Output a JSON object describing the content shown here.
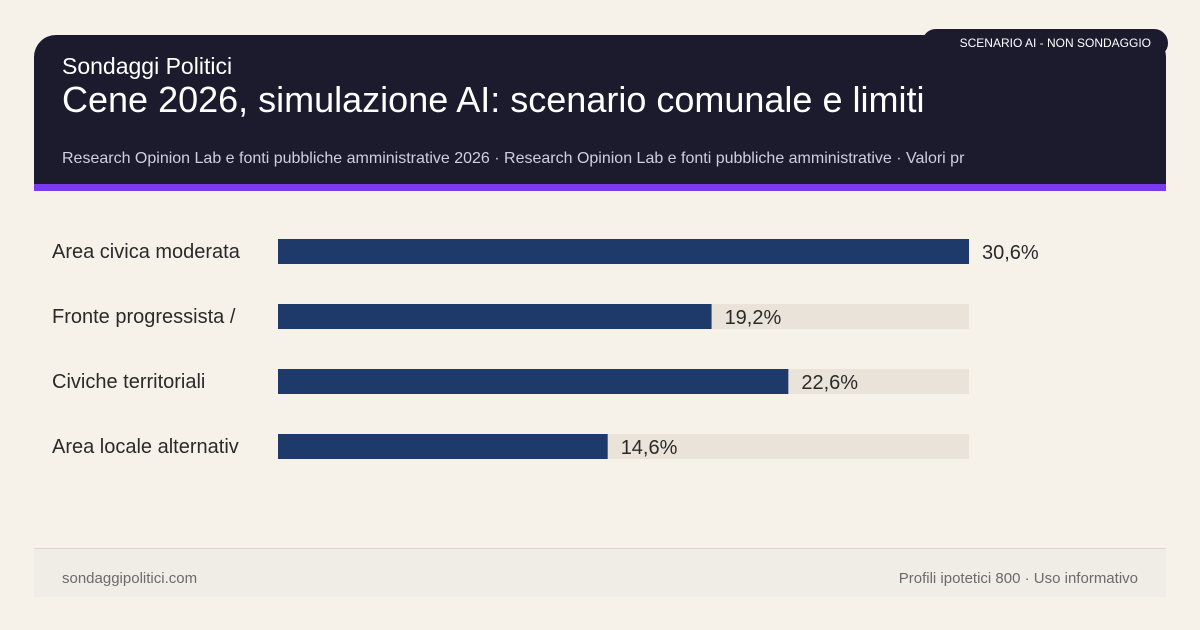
{
  "header": {
    "brand": "Sondaggi Politici",
    "title": "Cene 2026, simulazione AI: scenario comunale e limiti",
    "subtitle": "Research Opinion Lab e fonti pubbliche amministrative 2026 · Research Opinion Lab e fonti pubbliche amministrative · Valori pr",
    "badge": "SCENARIO AI - NON SONDAGGIO"
  },
  "colors": {
    "header_bg": "#1c1b2e",
    "accent": "#7c3aed",
    "bar": "#1e3a6b",
    "track": "#e9e3da",
    "page_bg": "#f6f2ea"
  },
  "chart_data": {
    "type": "bar",
    "orientation": "horizontal",
    "categories": [
      "Area civica moderata",
      "Fronte progressista /",
      "Civiche territoriali",
      "Area locale alternativ"
    ],
    "values": [
      30.6,
      19.2,
      22.6,
      14.6
    ],
    "value_labels": [
      "30,6%",
      "19,2%",
      "22,6%",
      "14,6%"
    ],
    "xlim": [
      0,
      30.6
    ],
    "grid": false,
    "legend": "none"
  },
  "footer": {
    "site": "sondaggipolitici.com",
    "note": "Profili ipotetici 800 · Uso informativo"
  }
}
